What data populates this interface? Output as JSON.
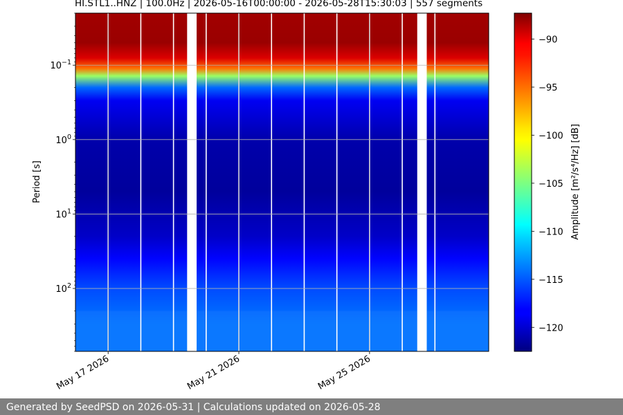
{
  "chart_data": {
    "type": "heatmap",
    "title": "HI.STL1..HNZ | 100.0Hz | 2026-05-16T00:00:00 - 2026-05-28T15:30:03 | 557 segments",
    "ylabel": "Period [s]",
    "y_scale": "log",
    "y_inverted": true,
    "ylim": [
      0.02,
      700
    ],
    "y_ticks": [
      {
        "value": 0.1,
        "base": "10",
        "exp": "−1"
      },
      {
        "value": 1,
        "base": "10",
        "exp": "0"
      },
      {
        "value": 10,
        "base": "10",
        "exp": "1"
      },
      {
        "value": 100,
        "base": "10",
        "exp": "2"
      }
    ],
    "x_axis_type": "date",
    "xlim": [
      "2026-05-16T00:00:00",
      "2026-05-28T15:30:03"
    ],
    "x_ticks": [
      {
        "value": "2026-05-17",
        "label": "May 17 2026"
      },
      {
        "value": "2026-05-21",
        "label": "May 21 2026"
      },
      {
        "value": "2026-05-25",
        "label": "May 25 2026"
      }
    ],
    "grid": true,
    "data_gaps": [
      [
        "2026-05-19T10:00:00",
        "2026-05-19T17:00:00"
      ],
      [
        "2026-05-26T11:00:00",
        "2026-05-26T18:00:00"
      ]
    ],
    "daily_boundaries": [
      "2026-05-17",
      "2026-05-18",
      "2026-05-19",
      "2026-05-20",
      "2026-05-21",
      "2026-05-22",
      "2026-05-23",
      "2026-05-24",
      "2026-05-25",
      "2026-05-26",
      "2026-05-27"
    ],
    "colorbar": {
      "label": "Amplitude [m²/s⁴/Hz] [dB]",
      "colormap": "jet",
      "range": [
        -122.5,
        -87.3
      ],
      "ticks": [
        {
          "value": -90,
          "label": "−90"
        },
        {
          "value": -95,
          "label": "−95"
        },
        {
          "value": -100,
          "label": "−100"
        },
        {
          "value": -105,
          "label": "−105"
        },
        {
          "value": -110,
          "label": "−110"
        },
        {
          "value": -115,
          "label": "−115"
        },
        {
          "value": -120,
          "label": "−120"
        }
      ]
    },
    "spectrum_profile": [
      {
        "period": 0.02,
        "db": -88.5
      },
      {
        "period": 0.05,
        "db": -88.2
      },
      {
        "period": 0.08,
        "db": -90.5
      },
      {
        "period": 0.11,
        "db": -95.5
      },
      {
        "period": 0.14,
        "db": -104
      },
      {
        "period": 0.2,
        "db": -114.5
      },
      {
        "period": 0.3,
        "db": -118.5
      },
      {
        "period": 1,
        "db": -121
      },
      {
        "period": 5,
        "db": -121.5
      },
      {
        "period": 20,
        "db": -120
      },
      {
        "period": 40,
        "db": -118
      },
      {
        "period": 100,
        "db": -115.5
      },
      {
        "period": 300,
        "db": -114
      },
      {
        "period": 700,
        "db": -114
      }
    ]
  },
  "footer": {
    "text": "Generated by SeedPSD on 2026-05-31 | Calculations updated on 2026-05-28"
  }
}
